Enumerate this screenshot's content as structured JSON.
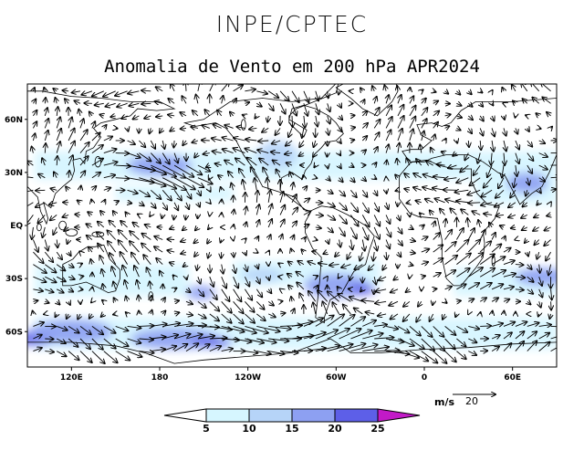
{
  "header": {
    "org": "INPE/CPTEC",
    "title": "Anomalia de Vento em 200 hPa APR2024"
  },
  "map": {
    "projection": "cylindrical-equidistant",
    "lon_range": [
      90,
      450
    ],
    "lat_range": [
      -80,
      80
    ],
    "lon_ticks": [
      {
        "lon": 120,
        "label": "120E"
      },
      {
        "lon": 180,
        "label": "180"
      },
      {
        "lon": 240,
        "label": "120W"
      },
      {
        "lon": 300,
        "label": "60W"
      },
      {
        "lon": 360,
        "label": "0"
      },
      {
        "lon": 420,
        "label": "60E"
      }
    ],
    "lat_ticks": [
      {
        "lat": 60,
        "label": "60N"
      },
      {
        "lat": 30,
        "label": "30N"
      },
      {
        "lat": 0,
        "label": "EQ"
      },
      {
        "lat": -30,
        "label": "30S"
      },
      {
        "lat": -60,
        "label": "60S"
      }
    ],
    "coastline_color": "#000000",
    "vector_color": "#000000"
  },
  "colorbar": {
    "labels": [
      "5",
      "10",
      "15",
      "20",
      "25"
    ],
    "colors": [
      "#ffffff",
      "#d6f6ff",
      "#b6d4f8",
      "#8da0f2",
      "#5d5fe8",
      "#c21ac7"
    ],
    "unit_label": "m/s",
    "reference_vector": "20"
  },
  "shading": [
    {
      "lon": 95,
      "lat": -64,
      "rx": 14,
      "ry": 4,
      "level": 4
    },
    {
      "lon": 120,
      "lat": -60,
      "rx": 28,
      "ry": 7,
      "level": 3
    },
    {
      "lon": 190,
      "lat": -64,
      "rx": 30,
      "ry": 6,
      "level": 3
    },
    {
      "lon": 215,
      "lat": -66,
      "rx": 14,
      "ry": 3,
      "level": 4
    },
    {
      "lon": 300,
      "lat": -34,
      "rx": 22,
      "ry": 7,
      "level": 3
    },
    {
      "lon": 318,
      "lat": -36,
      "rx": 9,
      "ry": 3,
      "level": 4
    },
    {
      "lon": 440,
      "lat": -29,
      "rx": 18,
      "ry": 5,
      "level": 3
    },
    {
      "lon": 180,
      "lat": 34,
      "rx": 22,
      "ry": 6,
      "level": 3
    },
    {
      "lon": 430,
      "lat": 24,
      "rx": 14,
      "ry": 6,
      "level": 3
    },
    {
      "lon": 208,
      "lat": -38,
      "rx": 10,
      "ry": 4,
      "level": 3
    },
    {
      "lon": 250,
      "lat": -28,
      "rx": 14,
      "ry": 4,
      "level": 2
    },
    {
      "lon": 260,
      "lat": 40,
      "rx": 14,
      "ry": 8,
      "level": 2
    }
  ]
}
